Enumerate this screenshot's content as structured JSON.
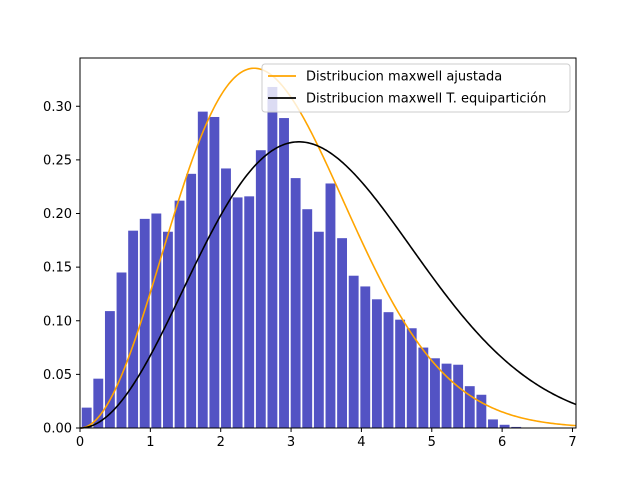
{
  "chart_data": {
    "type": "bar",
    "title": "",
    "xlabel": "",
    "ylabel": "",
    "xlim": [
      0,
      7.05
    ],
    "ylim": [
      0,
      0.345
    ],
    "xticks": [
      "0",
      "1",
      "2",
      "3",
      "4",
      "5",
      "6",
      "7"
    ],
    "yticks": [
      "0.00",
      "0.05",
      "0.10",
      "0.15",
      "0.20",
      "0.25",
      "0.30"
    ],
    "histogram": {
      "color": "#2323b4",
      "bin_width": 0.165,
      "bin_centers": [
        0.095,
        0.26,
        0.425,
        0.59,
        0.755,
        0.92,
        1.085,
        1.25,
        1.415,
        1.58,
        1.745,
        1.91,
        2.075,
        2.24,
        2.405,
        2.57,
        2.735,
        2.9,
        3.065,
        3.23,
        3.395,
        3.56,
        3.725,
        3.89,
        4.055,
        4.22,
        4.385,
        4.55,
        4.715,
        4.88,
        5.045,
        5.21,
        5.375,
        5.54,
        5.705,
        5.87,
        6.035,
        6.2,
        6.365,
        6.53,
        6.695,
        6.86
      ],
      "values": [
        0.019,
        0.046,
        0.109,
        0.145,
        0.184,
        0.195,
        0.2,
        0.183,
        0.212,
        0.237,
        0.295,
        0.29,
        0.242,
        0.215,
        0.216,
        0.259,
        0.318,
        0.289,
        0.233,
        0.204,
        0.183,
        0.228,
        0.177,
        0.142,
        0.132,
        0.12,
        0.108,
        0.101,
        0.093,
        0.075,
        0.065,
        0.06,
        0.059,
        0.039,
        0.031,
        0.008,
        0.003,
        0.001,
        0.0,
        0.0,
        0.0,
        0.0
      ]
    },
    "series": [
      {
        "name": "Distribucion maxwell ajustada",
        "type": "line",
        "color": "#ffa500",
        "a": 1.75
      },
      {
        "name": "Distribucion maxwell T. equipartición",
        "type": "line",
        "color": "#000000",
        "a": 2.2
      }
    ],
    "legend_placement": "top-right",
    "grid": false
  }
}
